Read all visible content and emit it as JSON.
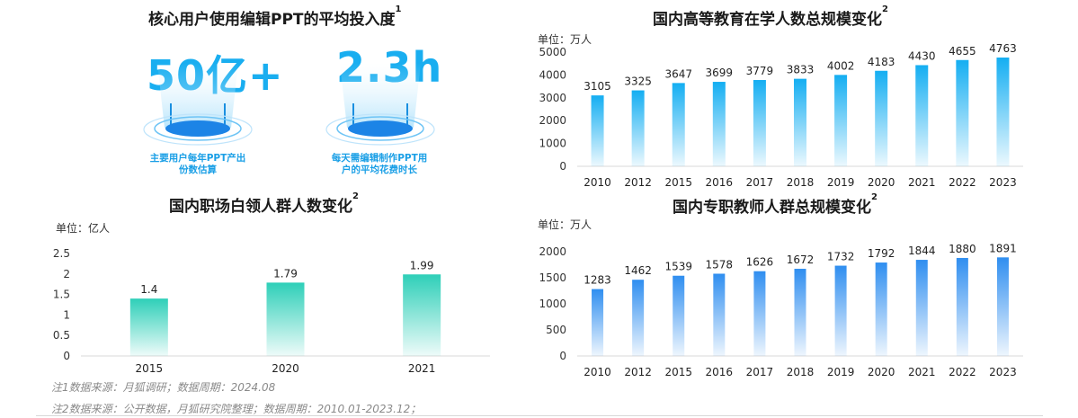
{
  "kpi_panel": {
    "title": "核心用户使用编辑PPT的平均投入度",
    "title_sup": "1",
    "items": [
      {
        "value": "50亿+",
        "desc_line1": "主要用户每年PPT产出",
        "desc_line2": "份数估算"
      },
      {
        "value": "2.3h",
        "desc_line1": "每天需编辑制作PPT用",
        "desc_line2": "户的平均花费时长"
      }
    ]
  },
  "notes": {
    "note1": "注1数据来源：月狐调研；数据周期：2024.08",
    "note2": "注2数据来源：公开数据，月狐研究院整理；数据周期：2010.01-2023.12；"
  },
  "colors": {
    "teal": "#2ecfb8",
    "blue_light": "#14aef2",
    "blue_deep": "#2f8ef0",
    "kpi": "#19aef0"
  },
  "chart_data": [
    {
      "id": "white-collar",
      "type": "bar",
      "title": "国内职场白领人群人数变化",
      "title_sup": "2",
      "unit": "单位：亿人",
      "categories": [
        "2015",
        "2020",
        "2021"
      ],
      "values": [
        1.4,
        1.79,
        1.99
      ],
      "value_labels": [
        "1.4",
        "1.79",
        "1.99"
      ],
      "ylim": [
        0,
        2.5
      ],
      "yticks": [
        "0",
        "0.5",
        "1",
        "1.5",
        "2",
        "2.5"
      ],
      "ytick_values": [
        0,
        0.5,
        1,
        1.5,
        2,
        2.5
      ],
      "grid": false,
      "color": "#2ecfb8"
    },
    {
      "id": "higher-education",
      "type": "bar",
      "title": "国内高等教育在学人数总规模变化",
      "title_sup": "2",
      "unit": "单位：万人",
      "categories": [
        "2010",
        "2012",
        "2015",
        "2016",
        "2017",
        "2018",
        "2019",
        "2020",
        "2021",
        "2022",
        "2023"
      ],
      "values": [
        3105,
        3325,
        3647,
        3699,
        3779,
        3833,
        4002,
        4183,
        4430,
        4655,
        4763
      ],
      "value_labels": [
        "3105",
        "3325",
        "3647",
        "3699",
        "3779",
        "3833",
        "4002",
        "4183",
        "4430",
        "4655",
        "4763"
      ],
      "ylim": [
        0,
        5000
      ],
      "yticks": [
        "0",
        "1000",
        "2000",
        "3000",
        "4000",
        "5000"
      ],
      "ytick_values": [
        0,
        1000,
        2000,
        3000,
        4000,
        5000
      ],
      "grid": false,
      "color": "#14aef2"
    },
    {
      "id": "full-time-teachers",
      "type": "bar",
      "title": "国内专职教师人群总规模变化",
      "title_sup": "2",
      "unit": "单位：万人",
      "categories": [
        "2010",
        "2012",
        "2015",
        "2016",
        "2017",
        "2018",
        "2019",
        "2020",
        "2021",
        "2022",
        "2023"
      ],
      "values": [
        1283,
        1462,
        1539,
        1578,
        1626,
        1672,
        1732,
        1792,
        1844,
        1880,
        1891
      ],
      "value_labels": [
        "1283",
        "1462",
        "1539",
        "1578",
        "1626",
        "1672",
        "1732",
        "1792",
        "1844",
        "1880",
        "1891"
      ],
      "ylim": [
        0,
        2000
      ],
      "yticks": [
        "0",
        "500",
        "1000",
        "1500",
        "2000"
      ],
      "ytick_values": [
        0,
        500,
        1000,
        1500,
        2000
      ],
      "grid": false,
      "color": "#2f8ef0"
    }
  ]
}
